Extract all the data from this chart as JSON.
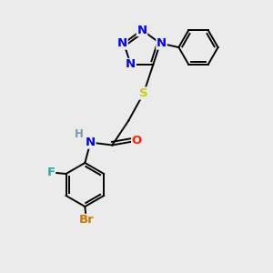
{
  "bg_color": "#ebebeb",
  "bond_color": "#000000",
  "atom_colors": {
    "N": "#0000ff",
    "S": "#cccc00",
    "O": "#ff2200",
    "F": "#22aaaa",
    "Br": "#cc7700",
    "H": "#7799aa",
    "C": "#000000"
  },
  "lw": 1.4,
  "fs": 9.5,
  "xlim": [
    0,
    10
  ],
  "ylim": [
    0,
    10
  ]
}
